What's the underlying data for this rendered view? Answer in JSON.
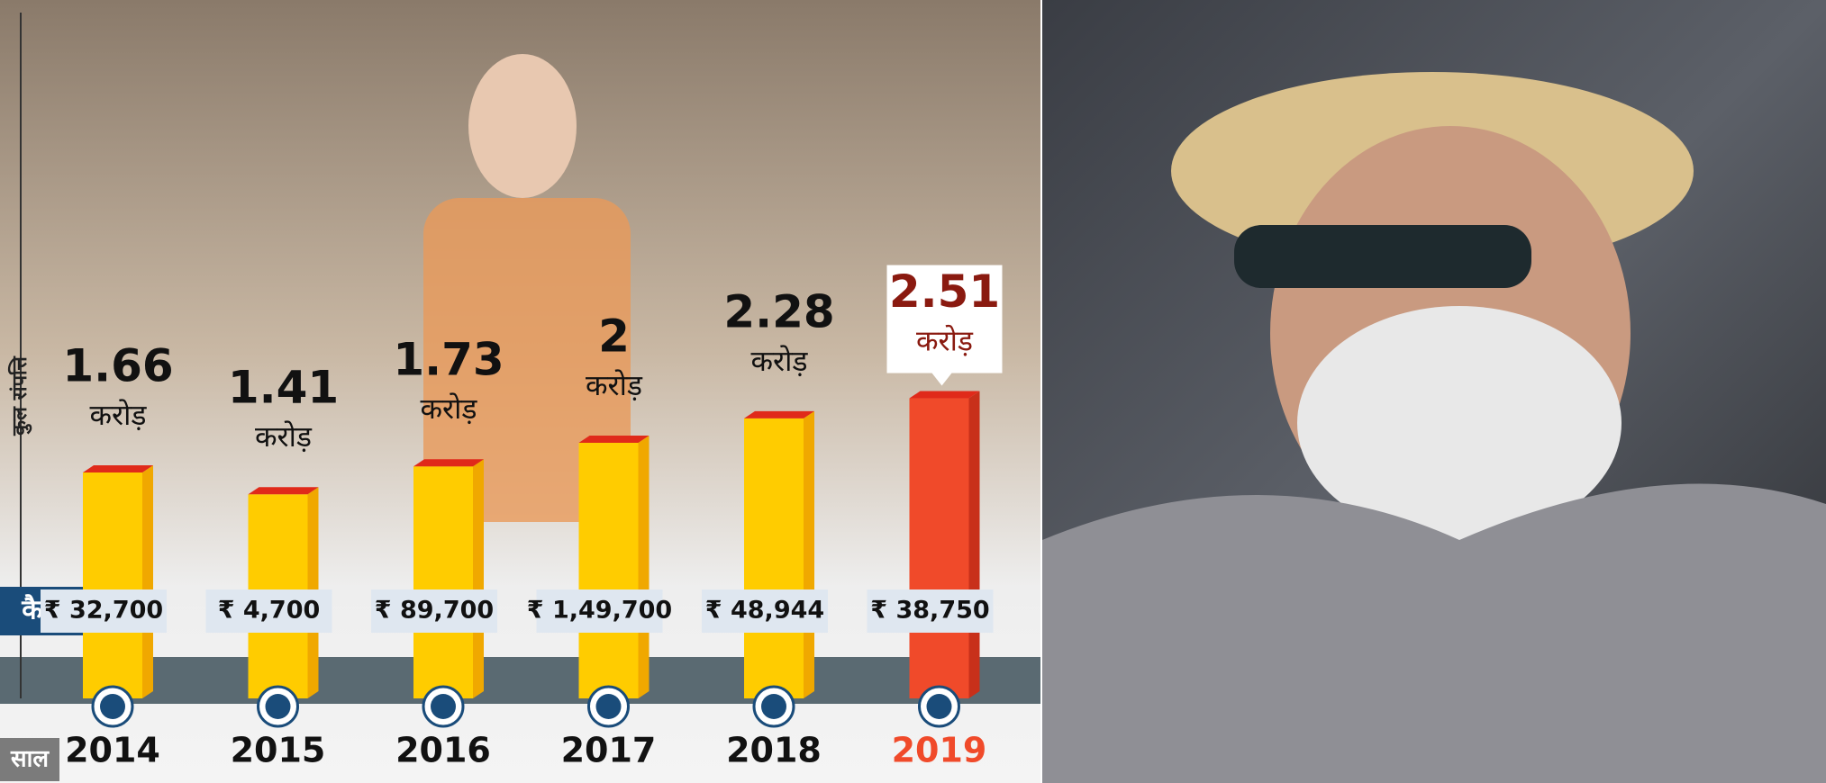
{
  "chart_data": {
    "type": "bar",
    "axis_label": "कुल संपत्ति",
    "unit": "करोड़",
    "categories": [
      "2014",
      "2015",
      "2016",
      "2017",
      "2018",
      "2019"
    ],
    "values": [
      1.66,
      1.41,
      1.73,
      2,
      2.28,
      2.51
    ],
    "color": "#ffcc00",
    "colors": [
      "#ffcc00",
      "#ffcc00",
      "#ffcc00",
      "#ffcc00",
      "#ffcc00",
      "#f04a2a"
    ],
    "cash_label": "कैश",
    "cash": [
      "₹ 32,700",
      "₹ 4,700",
      "₹ 89,700",
      "₹ 1,49,700",
      "₹ 48,944",
      "₹ 38,750"
    ],
    "year_label": "साल"
  }
}
